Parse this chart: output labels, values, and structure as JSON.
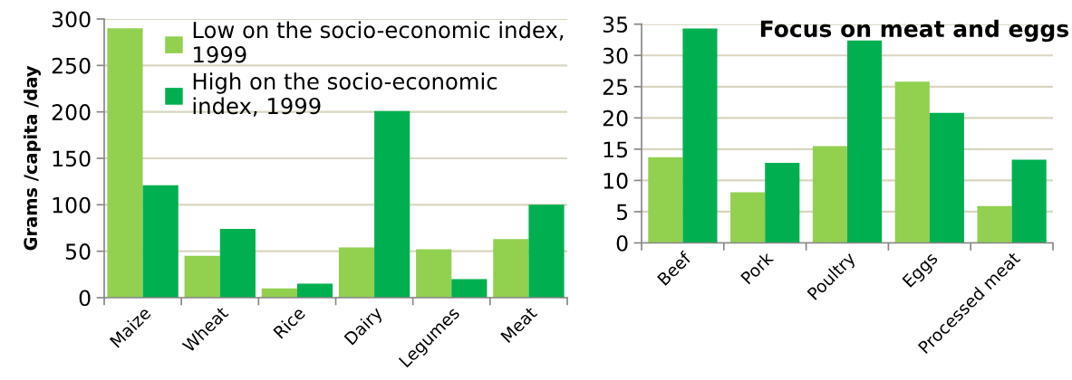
{
  "chart_data": [
    {
      "type": "bar",
      "categories": [
        "Maize",
        "Wheat",
        "Rice",
        "Dairy",
        "Legumes",
        "Meat"
      ],
      "series": [
        {
          "name": "Low on the socio-economic index,\n1999",
          "color": "#92d050",
          "values": [
            290,
            45,
            10,
            54,
            52,
            63
          ]
        },
        {
          "name": "High on the socio-economic\nindex, 1999",
          "color": "#00b050",
          "values": [
            121,
            74,
            15,
            201,
            20,
            100
          ]
        }
      ],
      "ylabel": "Grams /capita /day",
      "ylim": [
        0,
        300
      ],
      "yticks": [
        0,
        50,
        100,
        150,
        200,
        250,
        300
      ],
      "grid": "y",
      "legend": "top right"
    },
    {
      "type": "bar",
      "title": "Focus on meat and eggs",
      "categories": [
        "Beef",
        "Pork",
        "Poultry",
        "Eggs",
        "Processed meat"
      ],
      "series": [
        {
          "color": "#92d050",
          "values": [
            13.7,
            8.1,
            15.5,
            25.8,
            5.9
          ]
        },
        {
          "color": "#00b050",
          "values": [
            34.3,
            12.8,
            32.4,
            20.8,
            13.3
          ]
        }
      ],
      "ylim": [
        0,
        35
      ],
      "yticks": [
        0,
        5,
        10,
        15,
        20,
        25,
        30,
        35
      ],
      "grid": "y"
    }
  ]
}
